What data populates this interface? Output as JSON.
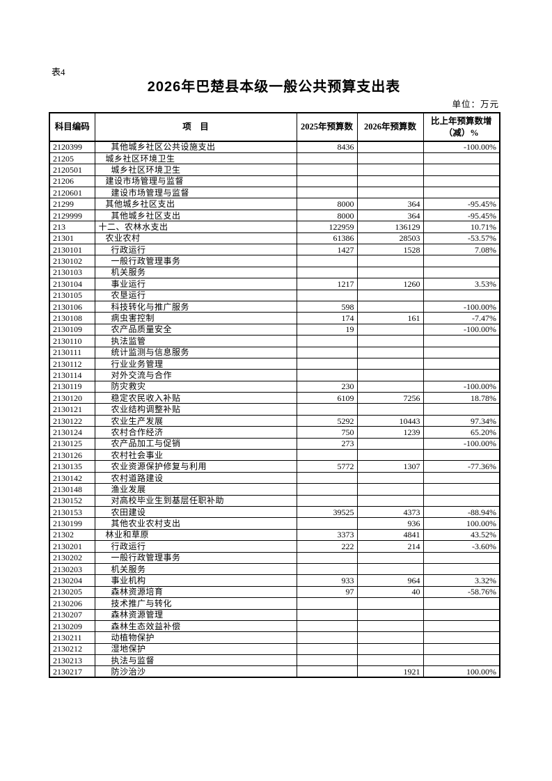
{
  "page": {
    "table_label": "表4",
    "title": "2026年巴楚县本级一般公共预算支出表",
    "unit_label": "单位：万元"
  },
  "table": {
    "columns": [
      "科目编码",
      "项　目",
      "2025年预算数",
      "2026年预算数",
      "比上年预算数增（减）%"
    ],
    "rows": [
      {
        "code": "2120399",
        "item": "其他城乡社区公共设施支出",
        "level": 3,
        "y2025": "8436",
        "y2026": "",
        "pct": "-100.00%"
      },
      {
        "code": "21205",
        "item": "城乡社区环境卫生",
        "level": 2,
        "y2025": "",
        "y2026": "",
        "pct": ""
      },
      {
        "code": "2120501",
        "item": "城乡社区环境卫生",
        "level": 3,
        "y2025": "",
        "y2026": "",
        "pct": ""
      },
      {
        "code": "21206",
        "item": "建设市场管理与监督",
        "level": 2,
        "y2025": "",
        "y2026": "",
        "pct": ""
      },
      {
        "code": "2120601",
        "item": "建设市场管理与监督",
        "level": 3,
        "y2025": "",
        "y2026": "",
        "pct": ""
      },
      {
        "code": "21299",
        "item": "其他城乡社区支出",
        "level": 2,
        "y2025": "8000",
        "y2026": "364",
        "pct": "-95.45%"
      },
      {
        "code": "2129999",
        "item": "其他城乡社区支出",
        "level": 3,
        "y2025": "8000",
        "y2026": "364",
        "pct": "-95.45%"
      },
      {
        "code": "213",
        "item": "十二、农林水支出",
        "level": 1,
        "y2025": "122959",
        "y2026": "136129",
        "pct": "10.71%"
      },
      {
        "code": "21301",
        "item": "农业农村",
        "level": 2,
        "y2025": "61386",
        "y2026": "28503",
        "pct": "-53.57%"
      },
      {
        "code": "2130101",
        "item": "行政运行",
        "level": 3,
        "y2025": "1427",
        "y2026": "1528",
        "pct": "7.08%"
      },
      {
        "code": "2130102",
        "item": "一般行政管理事务",
        "level": 3,
        "y2025": "",
        "y2026": "",
        "pct": ""
      },
      {
        "code": "2130103",
        "item": "机关服务",
        "level": 3,
        "y2025": "",
        "y2026": "",
        "pct": ""
      },
      {
        "code": "2130104",
        "item": "事业运行",
        "level": 3,
        "y2025": "1217",
        "y2026": "1260",
        "pct": "3.53%"
      },
      {
        "code": "2130105",
        "item": "农垦运行",
        "level": 3,
        "y2025": "",
        "y2026": "",
        "pct": ""
      },
      {
        "code": "2130106",
        "item": "科技转化与推广服务",
        "level": 3,
        "y2025": "598",
        "y2026": "",
        "pct": "-100.00%"
      },
      {
        "code": "2130108",
        "item": "病虫害控制",
        "level": 3,
        "y2025": "174",
        "y2026": "161",
        "pct": "-7.47%"
      },
      {
        "code": "2130109",
        "item": "农产品质量安全",
        "level": 3,
        "y2025": "19",
        "y2026": "",
        "pct": "-100.00%"
      },
      {
        "code": "2130110",
        "item": "执法监管",
        "level": 3,
        "y2025": "",
        "y2026": "",
        "pct": ""
      },
      {
        "code": "2130111",
        "item": "统计监测与信息服务",
        "level": 3,
        "y2025": "",
        "y2026": "",
        "pct": ""
      },
      {
        "code": "2130112",
        "item": "行业业务管理",
        "level": 3,
        "y2025": "",
        "y2026": "",
        "pct": ""
      },
      {
        "code": "2130114",
        "item": "对外交流与合作",
        "level": 3,
        "y2025": "",
        "y2026": "",
        "pct": ""
      },
      {
        "code": "2130119",
        "item": "防灾救灾",
        "level": 3,
        "y2025": "230",
        "y2026": "",
        "pct": "-100.00%"
      },
      {
        "code": "2130120",
        "item": "稳定农民收入补贴",
        "level": 3,
        "y2025": "6109",
        "y2026": "7256",
        "pct": "18.78%"
      },
      {
        "code": "2130121",
        "item": "农业结构调整补贴",
        "level": 3,
        "y2025": "",
        "y2026": "",
        "pct": ""
      },
      {
        "code": "2130122",
        "item": "农业生产发展",
        "level": 3,
        "y2025": "5292",
        "y2026": "10443",
        "pct": "97.34%"
      },
      {
        "code": "2130124",
        "item": "农村合作经济",
        "level": 3,
        "y2025": "750",
        "y2026": "1239",
        "pct": "65.20%"
      },
      {
        "code": "2130125",
        "item": "农产品加工与促销",
        "level": 3,
        "y2025": "273",
        "y2026": "",
        "pct": "-100.00%"
      },
      {
        "code": "2130126",
        "item": "农村社会事业",
        "level": 3,
        "y2025": "",
        "y2026": "",
        "pct": ""
      },
      {
        "code": "2130135",
        "item": "农业资源保护修复与利用",
        "level": 3,
        "y2025": "5772",
        "y2026": "1307",
        "pct": "-77.36%"
      },
      {
        "code": "2130142",
        "item": "农村道路建设",
        "level": 3,
        "y2025": "",
        "y2026": "",
        "pct": ""
      },
      {
        "code": "2130148",
        "item": "渔业发展",
        "level": 3,
        "y2025": "",
        "y2026": "",
        "pct": ""
      },
      {
        "code": "2130152",
        "item": "对高校毕业生到基层任职补助",
        "level": 3,
        "y2025": "",
        "y2026": "",
        "pct": ""
      },
      {
        "code": "2130153",
        "item": "农田建设",
        "level": 3,
        "y2025": "39525",
        "y2026": "4373",
        "pct": "-88.94%"
      },
      {
        "code": "2130199",
        "item": "其他农业农村支出",
        "level": 3,
        "y2025": "",
        "y2026": "936",
        "pct": "100.00%"
      },
      {
        "code": "21302",
        "item": "林业和草原",
        "level": 2,
        "y2025": "3373",
        "y2026": "4841",
        "pct": "43.52%"
      },
      {
        "code": "2130201",
        "item": "行政运行",
        "level": 3,
        "y2025": "222",
        "y2026": "214",
        "pct": "-3.60%"
      },
      {
        "code": "2130202",
        "item": "一般行政管理事务",
        "level": 3,
        "y2025": "",
        "y2026": "",
        "pct": ""
      },
      {
        "code": "2130203",
        "item": "机关服务",
        "level": 3,
        "y2025": "",
        "y2026": "",
        "pct": ""
      },
      {
        "code": "2130204",
        "item": "事业机构",
        "level": 3,
        "y2025": "933",
        "y2026": "964",
        "pct": "3.32%"
      },
      {
        "code": "2130205",
        "item": "森林资源培育",
        "level": 3,
        "y2025": "97",
        "y2026": "40",
        "pct": "-58.76%"
      },
      {
        "code": "2130206",
        "item": "技术推广与转化",
        "level": 3,
        "y2025": "",
        "y2026": "",
        "pct": ""
      },
      {
        "code": "2130207",
        "item": "森林资源管理",
        "level": 3,
        "y2025": "",
        "y2026": "",
        "pct": ""
      },
      {
        "code": "2130209",
        "item": "森林生态效益补偿",
        "level": 3,
        "y2025": "",
        "y2026": "",
        "pct": ""
      },
      {
        "code": "2130211",
        "item": "动植物保护",
        "level": 3,
        "y2025": "",
        "y2026": "",
        "pct": ""
      },
      {
        "code": "2130212",
        "item": "湿地保护",
        "level": 3,
        "y2025": "",
        "y2026": "",
        "pct": ""
      },
      {
        "code": "2130213",
        "item": "执法与监督",
        "level": 3,
        "y2025": "",
        "y2026": "",
        "pct": ""
      },
      {
        "code": "2130217",
        "item": "防沙治沙",
        "level": 3,
        "y2025": "",
        "y2026": "1921",
        "pct": "100.00%"
      }
    ]
  }
}
